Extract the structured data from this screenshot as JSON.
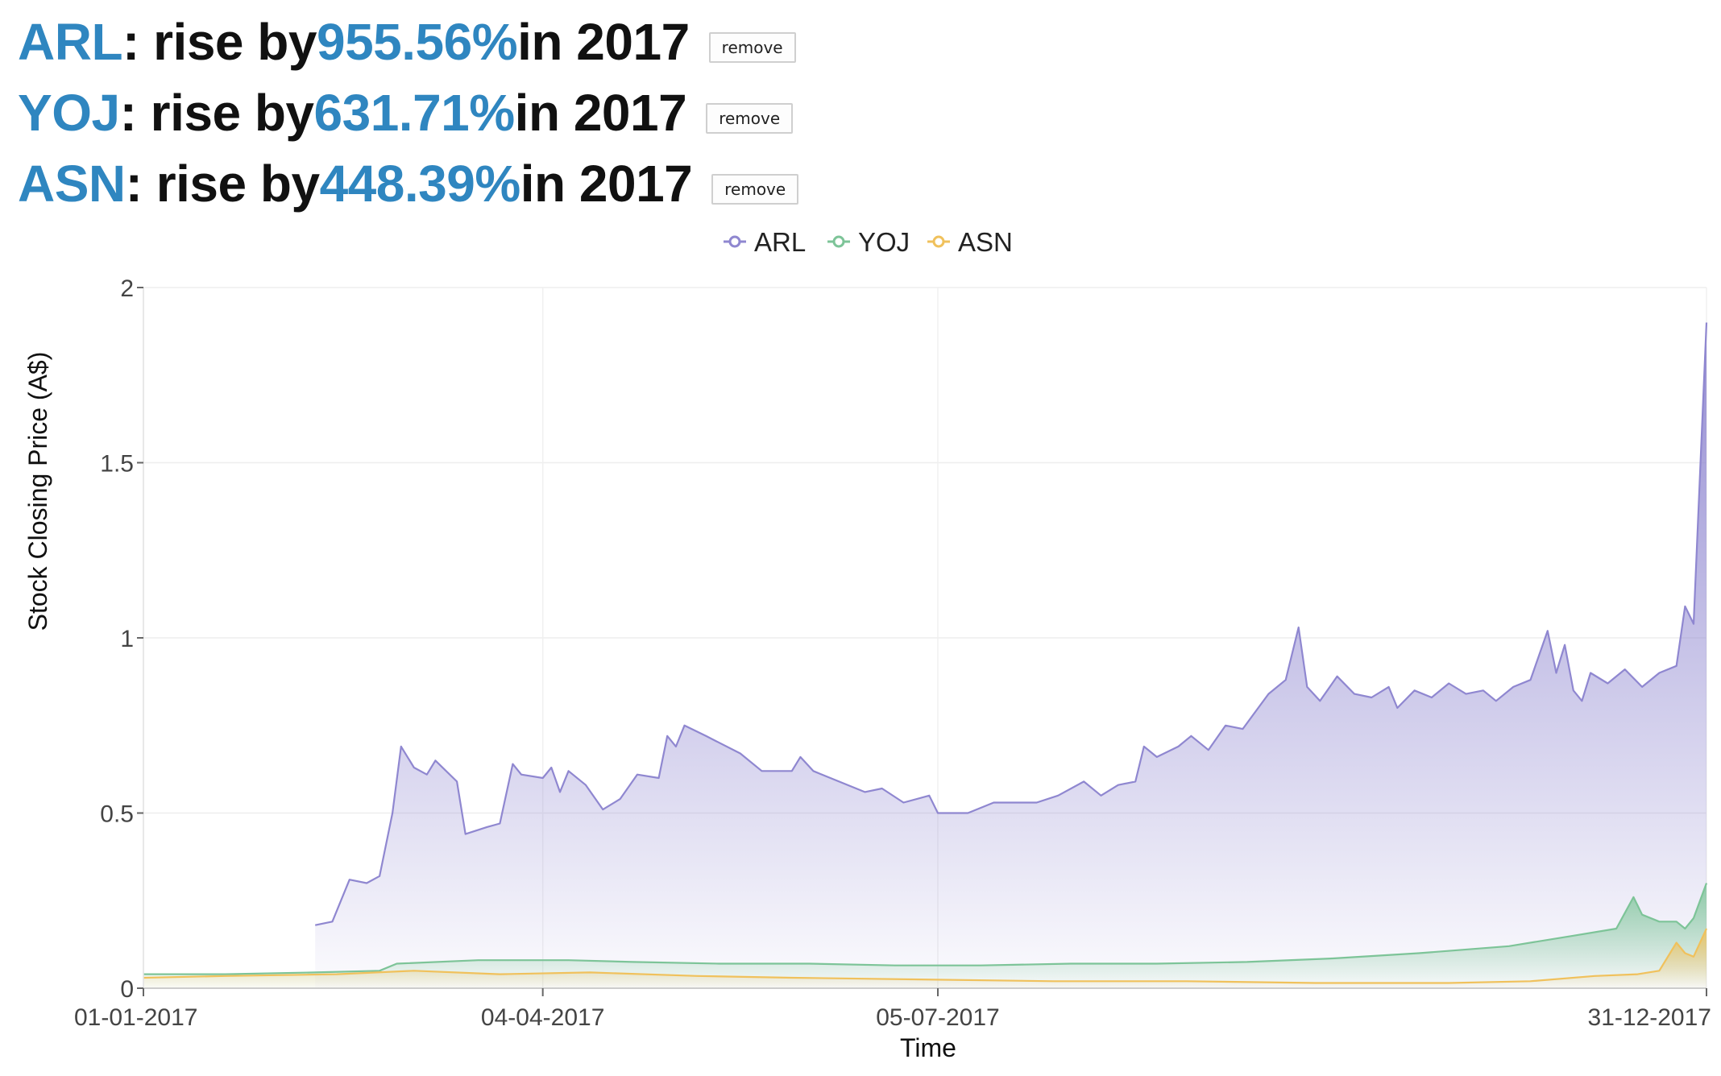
{
  "headlines": [
    {
      "ticker": "ARL",
      "pre": ": rise by ",
      "pct": "955.56%",
      "post": " in 2017",
      "button": "remove"
    },
    {
      "ticker": "YOJ",
      "pre": ": rise by ",
      "pct": "631.71%",
      "post": " in 2017",
      "button": "remove"
    },
    {
      "ticker": "ASN",
      "pre": ": rise by ",
      "pct": "448.39%",
      "post": " in 2017",
      "button": "remove"
    }
  ],
  "colors": {
    "accent": "#2f86c0",
    "ARL": "#8f87d0",
    "YOJ": "#7dc498",
    "ASN": "#f0c15c"
  },
  "chart_data": {
    "type": "area",
    "title": "",
    "xlabel": "Time",
    "ylabel": "Stock Closing Price (A$)",
    "x_axis_type": "date",
    "x_range": [
      "2017-01-01",
      "2017-12-31"
    ],
    "x_ticks": [
      "01-01-2017",
      "04-04-2017",
      "05-07-2017",
      "31-12-2017"
    ],
    "x_tick_dates": [
      "2017-01-01",
      "2017-04-04",
      "2017-07-05",
      "2017-12-31"
    ],
    "ylim": [
      0,
      2
    ],
    "y_ticks": [
      0,
      0.5,
      1,
      1.5,
      2
    ],
    "y_tick_labels": [
      "0",
      "0.5",
      "1",
      "1.5",
      "2"
    ],
    "grid": true,
    "legend": "top-center",
    "series": [
      {
        "name": "ARL",
        "color": "#8f87d0",
        "points": [
          [
            "2017-02-10",
            0.18
          ],
          [
            "2017-02-14",
            0.19
          ],
          [
            "2017-02-18",
            0.31
          ],
          [
            "2017-02-22",
            0.3
          ],
          [
            "2017-02-25",
            0.32
          ],
          [
            "2017-02-28",
            0.5
          ],
          [
            "2017-03-02",
            0.69
          ],
          [
            "2017-03-05",
            0.63
          ],
          [
            "2017-03-08",
            0.61
          ],
          [
            "2017-03-10",
            0.65
          ],
          [
            "2017-03-15",
            0.59
          ],
          [
            "2017-03-17",
            0.44
          ],
          [
            "2017-03-22",
            0.46
          ],
          [
            "2017-03-25",
            0.47
          ],
          [
            "2017-03-28",
            0.64
          ],
          [
            "2017-03-30",
            0.61
          ],
          [
            "2017-04-04",
            0.6
          ],
          [
            "2017-04-06",
            0.63
          ],
          [
            "2017-04-08",
            0.56
          ],
          [
            "2017-04-10",
            0.62
          ],
          [
            "2017-04-14",
            0.58
          ],
          [
            "2017-04-18",
            0.51
          ],
          [
            "2017-04-22",
            0.54
          ],
          [
            "2017-04-26",
            0.61
          ],
          [
            "2017-05-01",
            0.6
          ],
          [
            "2017-05-03",
            0.72
          ],
          [
            "2017-05-05",
            0.69
          ],
          [
            "2017-05-07",
            0.75
          ],
          [
            "2017-05-12",
            0.72
          ],
          [
            "2017-05-20",
            0.67
          ],
          [
            "2017-05-25",
            0.62
          ],
          [
            "2017-06-01",
            0.62
          ],
          [
            "2017-06-03",
            0.66
          ],
          [
            "2017-06-06",
            0.62
          ],
          [
            "2017-06-12",
            0.59
          ],
          [
            "2017-06-18",
            0.56
          ],
          [
            "2017-06-22",
            0.57
          ],
          [
            "2017-06-27",
            0.53
          ],
          [
            "2017-07-03",
            0.55
          ],
          [
            "2017-07-05",
            0.5
          ],
          [
            "2017-07-12",
            0.5
          ],
          [
            "2017-07-18",
            0.53
          ],
          [
            "2017-07-28",
            0.53
          ],
          [
            "2017-08-02",
            0.55
          ],
          [
            "2017-08-08",
            0.59
          ],
          [
            "2017-08-12",
            0.55
          ],
          [
            "2017-08-16",
            0.58
          ],
          [
            "2017-08-20",
            0.59
          ],
          [
            "2017-08-22",
            0.69
          ],
          [
            "2017-08-25",
            0.66
          ],
          [
            "2017-08-30",
            0.69
          ],
          [
            "2017-09-02",
            0.72
          ],
          [
            "2017-09-06",
            0.68
          ],
          [
            "2017-09-10",
            0.75
          ],
          [
            "2017-09-14",
            0.74
          ],
          [
            "2017-09-20",
            0.84
          ],
          [
            "2017-09-24",
            0.88
          ],
          [
            "2017-09-27",
            1.03
          ],
          [
            "2017-09-29",
            0.86
          ],
          [
            "2017-10-02",
            0.82
          ],
          [
            "2017-10-06",
            0.89
          ],
          [
            "2017-10-10",
            0.84
          ],
          [
            "2017-10-14",
            0.83
          ],
          [
            "2017-10-18",
            0.86
          ],
          [
            "2017-10-20",
            0.8
          ],
          [
            "2017-10-24",
            0.85
          ],
          [
            "2017-10-28",
            0.83
          ],
          [
            "2017-11-01",
            0.87
          ],
          [
            "2017-11-05",
            0.84
          ],
          [
            "2017-11-09",
            0.85
          ],
          [
            "2017-11-12",
            0.82
          ],
          [
            "2017-11-16",
            0.86
          ],
          [
            "2017-11-20",
            0.88
          ],
          [
            "2017-11-24",
            1.02
          ],
          [
            "2017-11-26",
            0.9
          ],
          [
            "2017-11-28",
            0.98
          ],
          [
            "2017-11-30",
            0.85
          ],
          [
            "2017-12-02",
            0.82
          ],
          [
            "2017-12-04",
            0.9
          ],
          [
            "2017-12-08",
            0.87
          ],
          [
            "2017-12-12",
            0.91
          ],
          [
            "2017-12-16",
            0.86
          ],
          [
            "2017-12-20",
            0.9
          ],
          [
            "2017-12-24",
            0.92
          ],
          [
            "2017-12-26",
            1.09
          ],
          [
            "2017-12-28",
            1.04
          ],
          [
            "2017-12-31",
            1.9
          ]
        ]
      },
      {
        "name": "YOJ",
        "color": "#7dc498",
        "points": [
          [
            "2017-01-01",
            0.04
          ],
          [
            "2017-01-20",
            0.04
          ],
          [
            "2017-02-10",
            0.045
          ],
          [
            "2017-02-25",
            0.05
          ],
          [
            "2017-03-01",
            0.07
          ],
          [
            "2017-03-20",
            0.08
          ],
          [
            "2017-04-10",
            0.08
          ],
          [
            "2017-04-25",
            0.075
          ],
          [
            "2017-05-15",
            0.07
          ],
          [
            "2017-06-05",
            0.07
          ],
          [
            "2017-06-25",
            0.065
          ],
          [
            "2017-07-15",
            0.065
          ],
          [
            "2017-08-05",
            0.07
          ],
          [
            "2017-08-25",
            0.07
          ],
          [
            "2017-09-15",
            0.075
          ],
          [
            "2017-10-05",
            0.085
          ],
          [
            "2017-10-25",
            0.1
          ],
          [
            "2017-11-15",
            0.12
          ],
          [
            "2017-11-30",
            0.15
          ],
          [
            "2017-12-10",
            0.17
          ],
          [
            "2017-12-14",
            0.26
          ],
          [
            "2017-12-16",
            0.21
          ],
          [
            "2017-12-20",
            0.19
          ],
          [
            "2017-12-24",
            0.19
          ],
          [
            "2017-12-26",
            0.17
          ],
          [
            "2017-12-28",
            0.2
          ],
          [
            "2017-12-31",
            0.3
          ]
        ]
      },
      {
        "name": "ASN",
        "color": "#f0c15c",
        "points": [
          [
            "2017-01-01",
            0.03
          ],
          [
            "2017-01-20",
            0.035
          ],
          [
            "2017-02-15",
            0.04
          ],
          [
            "2017-03-05",
            0.05
          ],
          [
            "2017-03-25",
            0.04
          ],
          [
            "2017-04-15",
            0.045
          ],
          [
            "2017-05-10",
            0.035
          ],
          [
            "2017-06-01",
            0.03
          ],
          [
            "2017-07-01",
            0.025
          ],
          [
            "2017-08-01",
            0.02
          ],
          [
            "2017-09-01",
            0.02
          ],
          [
            "2017-10-01",
            0.015
          ],
          [
            "2017-11-01",
            0.015
          ],
          [
            "2017-11-20",
            0.02
          ],
          [
            "2017-12-05",
            0.035
          ],
          [
            "2017-12-15",
            0.04
          ],
          [
            "2017-12-20",
            0.05
          ],
          [
            "2017-12-24",
            0.13
          ],
          [
            "2017-12-26",
            0.1
          ],
          [
            "2017-12-28",
            0.09
          ],
          [
            "2017-12-31",
            0.17
          ]
        ]
      }
    ]
  }
}
